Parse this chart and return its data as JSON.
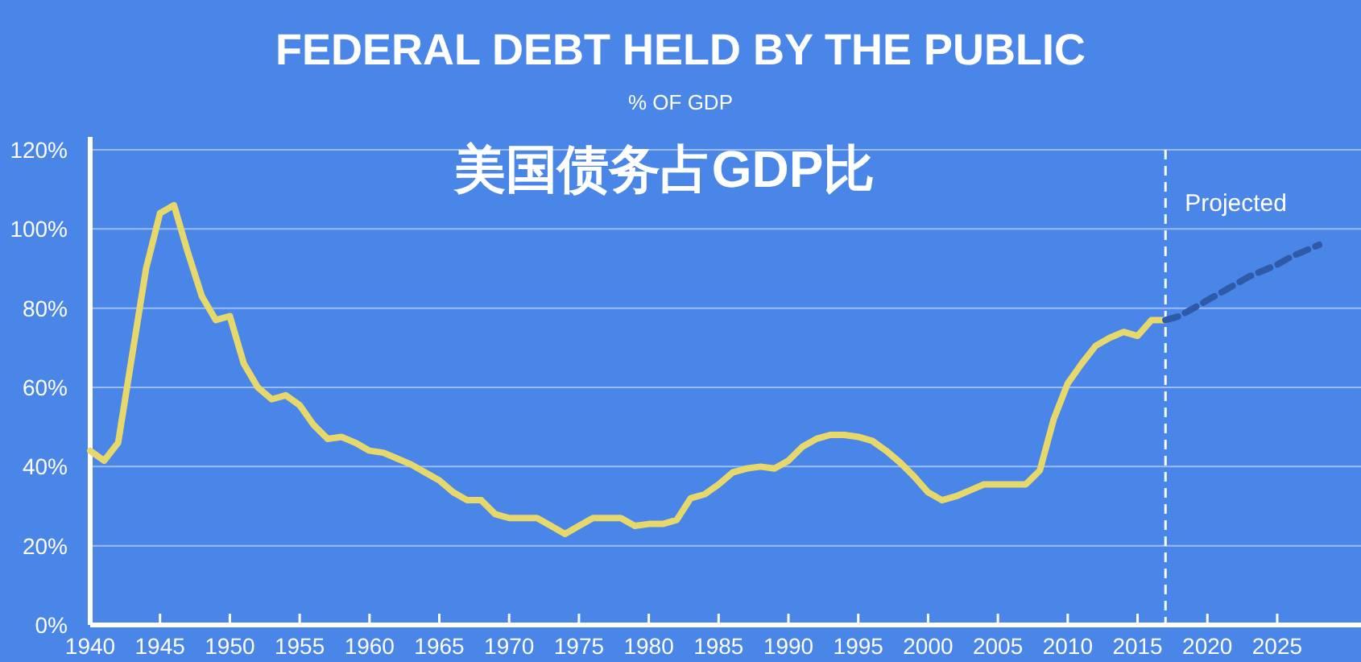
{
  "chart_data": {
    "type": "line",
    "title": "FEDERAL DEBT HELD BY THE PUBLIC",
    "subtitle": "% OF GDP",
    "annotations": [
      "美国债务占GDP比"
    ],
    "xlim": [
      1940,
      2031
    ],
    "ylim": [
      0,
      120
    ],
    "xticks": [
      1940,
      1945,
      1950,
      1955,
      1960,
      1965,
      1970,
      1975,
      1980,
      1985,
      1990,
      1995,
      2000,
      2005,
      2010,
      2015,
      2020,
      2025
    ],
    "yticks": [
      {
        "value": 0,
        "label": "0%"
      },
      {
        "value": 20,
        "label": "20%"
      },
      {
        "value": 40,
        "label": "40%"
      },
      {
        "value": 60,
        "label": "60%"
      },
      {
        "value": 80,
        "label": "80%"
      },
      {
        "value": 100,
        "label": "100%"
      },
      {
        "value": 120,
        "label": "120%"
      }
    ],
    "grid": "y",
    "ref_lines": [
      {
        "axis": "x",
        "value": 2017,
        "label": "Projected",
        "color": "#ffffff",
        "line_style": "dashed"
      }
    ],
    "series": [
      {
        "color": "#e6d86a",
        "line_style": "solid",
        "x": [
          1940,
          1941,
          1942,
          1943,
          1944,
          1945,
          1946,
          1947,
          1948,
          1949,
          1950,
          1951,
          1952,
          1953,
          1954,
          1955,
          1956,
          1957,
          1958,
          1959,
          1960,
          1961,
          1962,
          1963,
          1964,
          1965,
          1966,
          1967,
          1968,
          1969,
          1970,
          1971,
          1972,
          1973,
          1974,
          1975,
          1976,
          1977,
          1978,
          1979,
          1980,
          1981,
          1982,
          1983,
          1984,
          1985,
          1986,
          1987,
          1988,
          1989,
          1990,
          1991,
          1992,
          1993,
          1994,
          1995,
          1996,
          1997,
          1998,
          1999,
          2000,
          2001,
          2002,
          2003,
          2004,
          2005,
          2006,
          2007,
          2008,
          2009,
          2010,
          2011,
          2012,
          2013,
          2014,
          2015,
          2016,
          2017
        ],
        "values": [
          44,
          41.5,
          46,
          68,
          90,
          104,
          106,
          94,
          83,
          77,
          78,
          66,
          60,
          57,
          58,
          55.5,
          50.5,
          47,
          47.5,
          46,
          44,
          43.5,
          42,
          40.5,
          38.5,
          36.5,
          33.5,
          31.5,
          31.5,
          28,
          27,
          27,
          27,
          25,
          23,
          25,
          27,
          27,
          27,
          25,
          25.5,
          25.5,
          26.5,
          32,
          33,
          35.5,
          38.5,
          39.5,
          40,
          39.5,
          41.5,
          45,
          47,
          48,
          48,
          47.5,
          46.5,
          44,
          41,
          37.5,
          33.5,
          31.5,
          32.5,
          34,
          35.5,
          35.5,
          35.5,
          35.5,
          39,
          52,
          61,
          66,
          70.5,
          72.5,
          74,
          73,
          77,
          77
        ]
      },
      {
        "color": "#2f5aa8",
        "line_style": "dashed",
        "x": [
          2017,
          2018,
          2019,
          2020,
          2021,
          2022,
          2023,
          2024,
          2025,
          2026,
          2027,
          2028
        ],
        "values": [
          77,
          78,
          80,
          82,
          84,
          86,
          88,
          89.5,
          91,
          93,
          94.5,
          96
        ]
      }
    ]
  }
}
